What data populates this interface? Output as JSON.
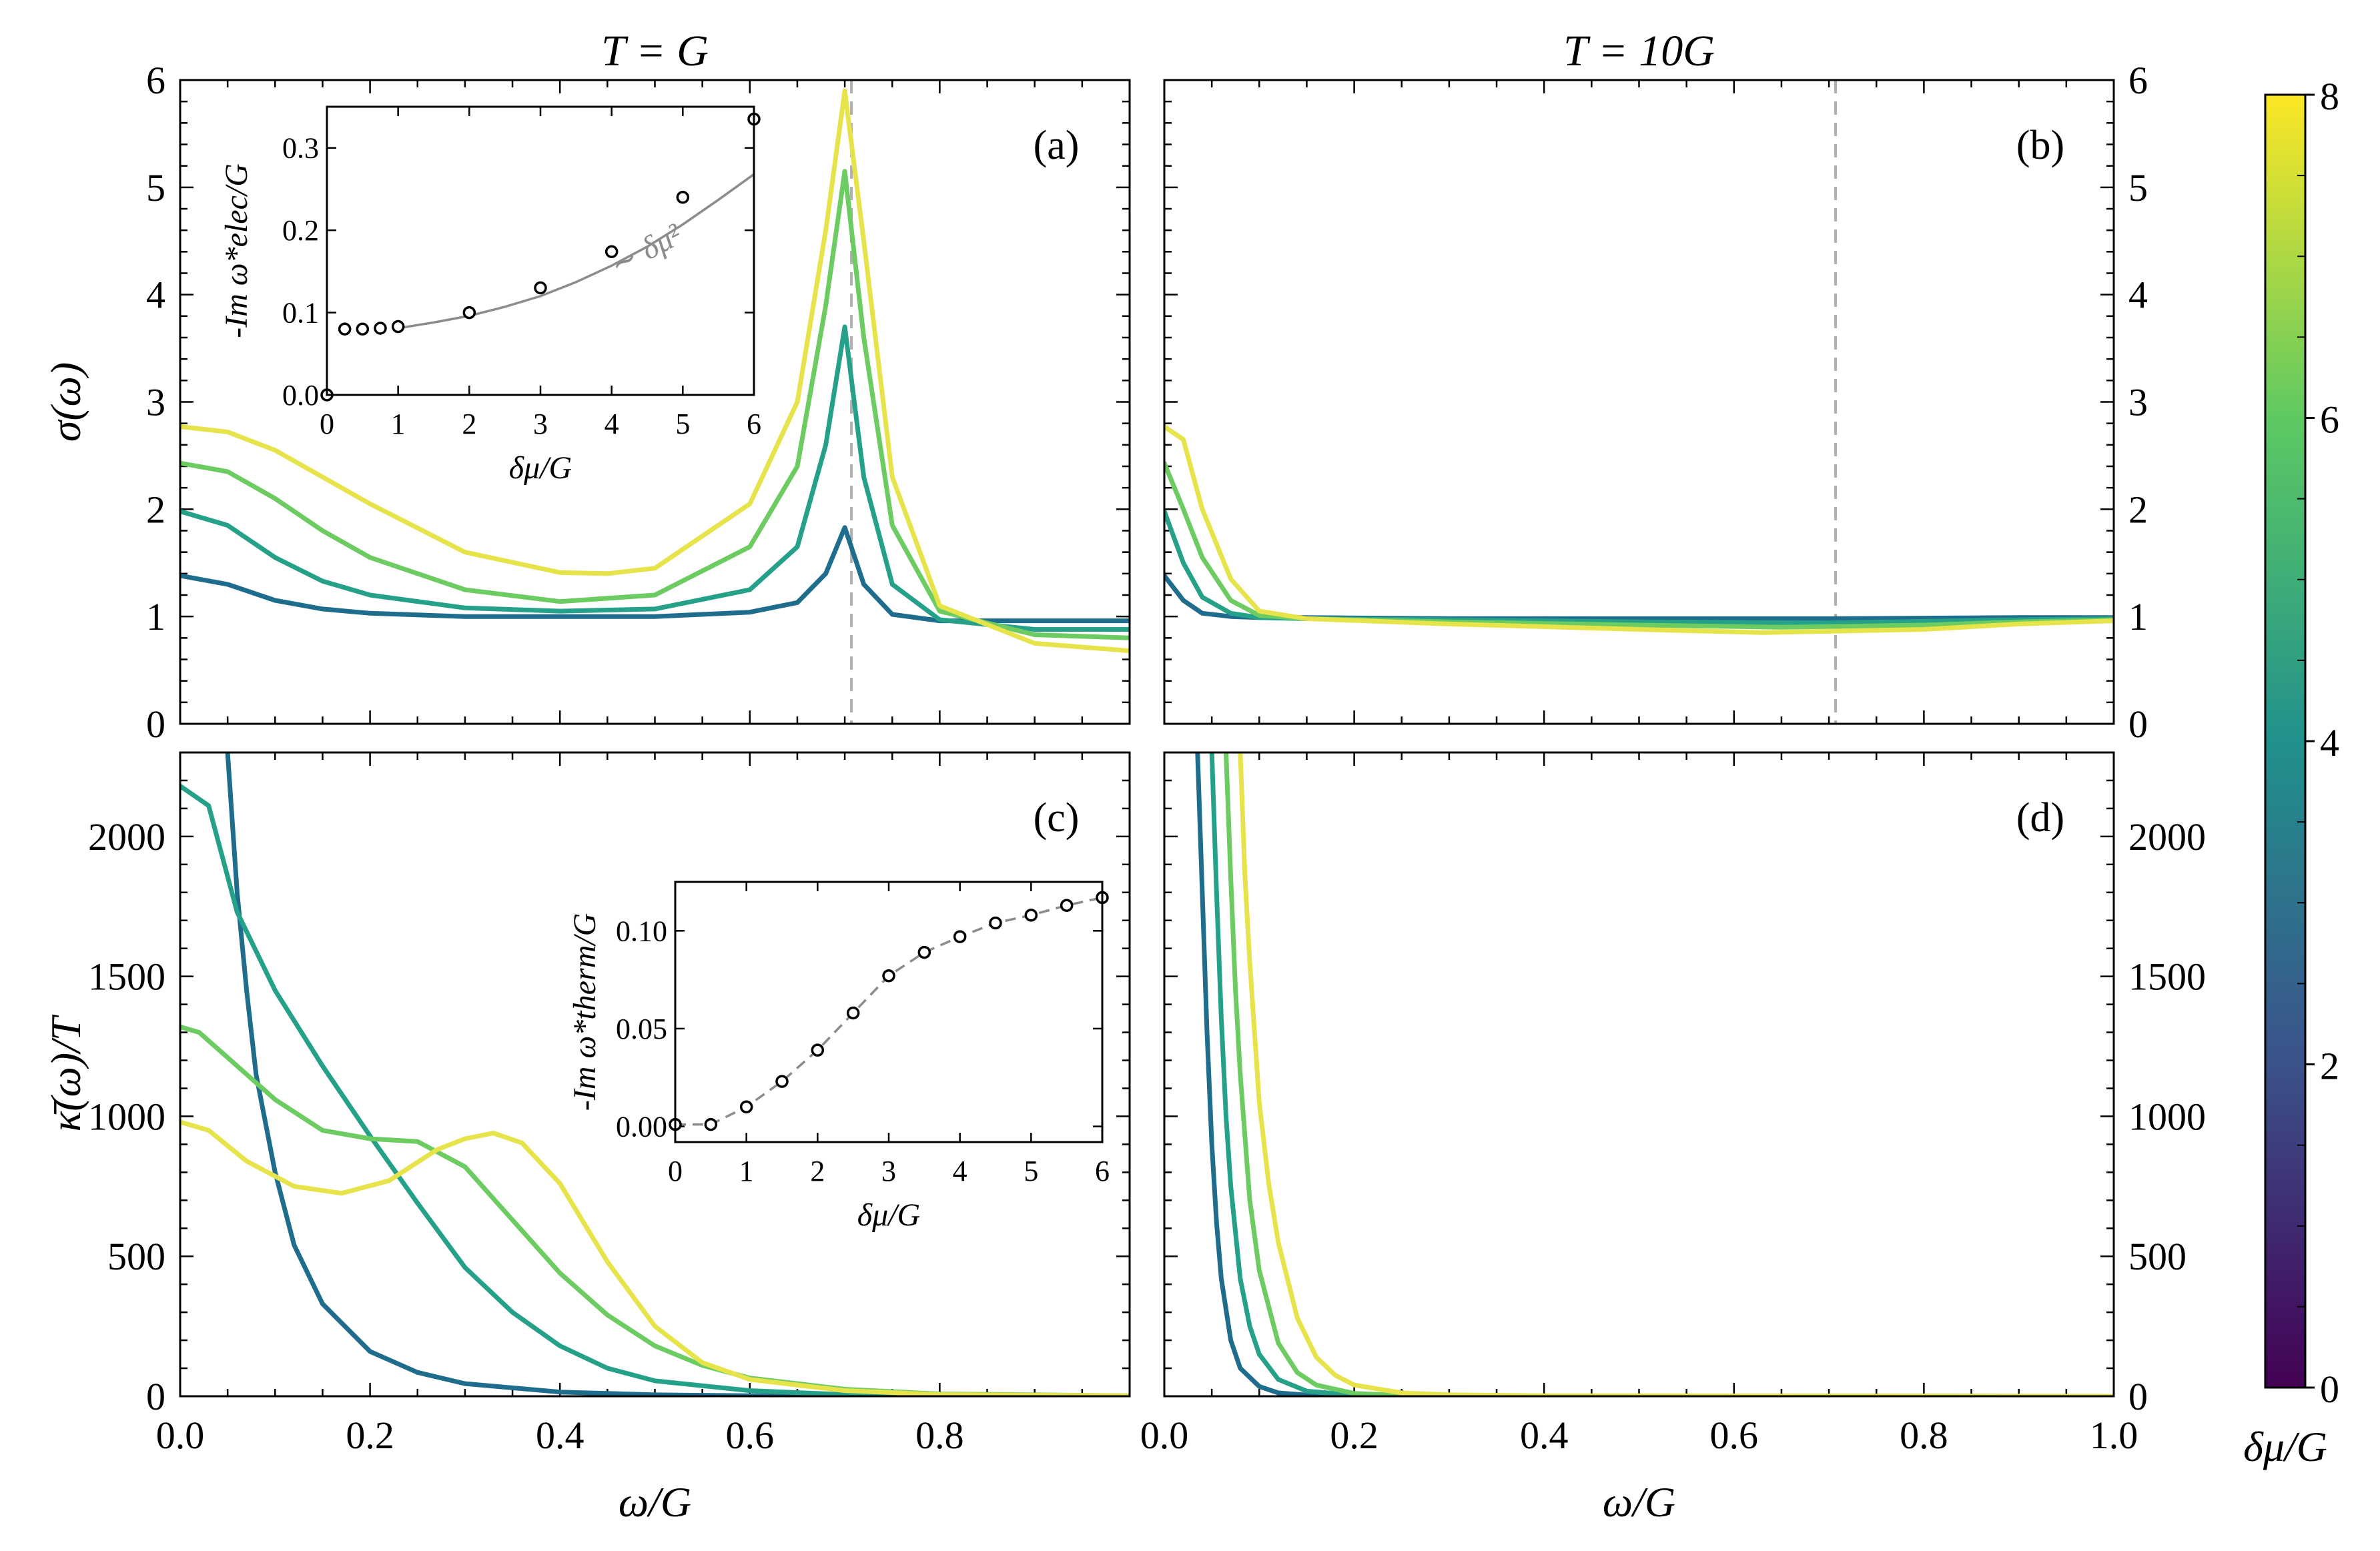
{
  "colors": {
    "dmu2": "#1f6d8c",
    "dmu4": "#25a18a",
    "dmu6": "#6ccb61",
    "dmu8": "#e6e34b",
    "dashed": "#b0b0b0",
    "fit": "#8c8c8c"
  },
  "chart_data": [
    {
      "id": "a",
      "type": "line",
      "panel_label": "(a)",
      "title": "T = G",
      "xlabel": "",
      "ylabel": "σ(ω)",
      "xlim": [
        0,
        1.0
      ],
      "ylim": [
        0,
        6
      ],
      "xticks": [
        0.0,
        0.2,
        0.4,
        0.6,
        0.8
      ],
      "yticks": [
        0,
        1,
        2,
        3,
        4,
        5,
        6
      ],
      "ytick_labels": [
        "0",
        "1",
        "2",
        "3",
        "4",
        "5",
        "6"
      ],
      "vline": 0.707,
      "series": [
        {
          "name": "δμ/G = 2",
          "x": [
            0,
            0.05,
            0.1,
            0.15,
            0.2,
            0.3,
            0.4,
            0.5,
            0.6,
            0.65,
            0.68,
            0.7,
            0.72,
            0.75,
            0.8,
            0.9,
            1.0
          ],
          "values": [
            1.38,
            1.3,
            1.15,
            1.07,
            1.03,
            1.0,
            1.0,
            1.0,
            1.04,
            1.13,
            1.4,
            1.83,
            1.3,
            1.02,
            0.96,
            0.96,
            0.96
          ]
        },
        {
          "name": "δμ/G = 4",
          "x": [
            0,
            0.05,
            0.1,
            0.15,
            0.2,
            0.3,
            0.4,
            0.5,
            0.6,
            0.65,
            0.68,
            0.7,
            0.72,
            0.75,
            0.8,
            0.9,
            1.0
          ],
          "values": [
            1.98,
            1.85,
            1.55,
            1.33,
            1.2,
            1.08,
            1.05,
            1.07,
            1.25,
            1.65,
            2.6,
            3.7,
            2.3,
            1.3,
            0.97,
            0.88,
            0.88
          ]
        },
        {
          "name": "δμ/G = 6",
          "x": [
            0,
            0.05,
            0.1,
            0.15,
            0.2,
            0.3,
            0.4,
            0.5,
            0.6,
            0.65,
            0.68,
            0.7,
            0.72,
            0.75,
            0.8,
            0.9,
            1.0
          ],
          "values": [
            2.43,
            2.35,
            2.1,
            1.8,
            1.55,
            1.25,
            1.14,
            1.2,
            1.65,
            2.4,
            3.9,
            5.15,
            3.6,
            1.85,
            1.05,
            0.83,
            0.8
          ]
        },
        {
          "name": "δμ/G = 8",
          "x": [
            0,
            0.05,
            0.1,
            0.15,
            0.2,
            0.3,
            0.4,
            0.45,
            0.5,
            0.6,
            0.65,
            0.68,
            0.7,
            0.72,
            0.75,
            0.8,
            0.9,
            1.0
          ],
          "values": [
            2.77,
            2.72,
            2.55,
            2.3,
            2.05,
            1.6,
            1.41,
            1.4,
            1.45,
            2.05,
            3.0,
            4.6,
            5.9,
            4.5,
            2.3,
            1.1,
            0.75,
            0.68
          ]
        }
      ],
      "inset": {
        "type": "scatter",
        "xlabel": "δμ/G",
        "ylabel": "-Im ω*elec/G",
        "annotation": "∼ δμ²",
        "xlim": [
          0,
          6
        ],
        "ylim": [
          0,
          0.35
        ],
        "xticks": [
          0,
          1,
          2,
          3,
          4,
          5,
          6
        ],
        "yticks": [
          0.0,
          0.1,
          0.2,
          0.3
        ],
        "ytick_labels": [
          "0.0",
          "0.1",
          "0.2",
          "0.3"
        ],
        "points": {
          "x": [
            0,
            0.25,
            0.5,
            0.75,
            1,
            2,
            3,
            4,
            5,
            6
          ],
          "y": [
            0.0,
            0.08,
            0.08,
            0.081,
            0.083,
            0.1,
            0.13,
            0.174,
            0.24,
            0.335
          ]
        },
        "fit": {
          "x": [
            1,
            1.5,
            2,
            2.5,
            3,
            3.5,
            4,
            4.5,
            5,
            5.5,
            6
          ],
          "y": [
            0.081,
            0.088,
            0.096,
            0.107,
            0.12,
            0.137,
            0.157,
            0.18,
            0.207,
            0.237,
            0.268
          ]
        }
      }
    },
    {
      "id": "b",
      "type": "line",
      "panel_label": "(b)",
      "title": "T = 10G",
      "xlabel": "",
      "ylabel": "",
      "xlim": [
        0,
        1.0
      ],
      "ylim": [
        0,
        6
      ],
      "yticks": [
        0,
        1,
        2,
        3,
        4,
        5,
        6
      ],
      "ytick_labels": [
        "0",
        "1",
        "2",
        "3",
        "4",
        "5",
        "6"
      ],
      "vline": 0.707,
      "series": [
        {
          "name": "δμ/G = 2",
          "x": [
            0,
            0.02,
            0.04,
            0.07,
            0.1,
            0.15,
            0.3,
            0.5,
            0.7,
            0.9,
            1.0
          ],
          "values": [
            1.38,
            1.15,
            1.03,
            1.0,
            0.99,
            0.99,
            0.98,
            0.98,
            0.98,
            0.99,
            0.99
          ]
        },
        {
          "name": "δμ/G = 4",
          "x": [
            0,
            0.02,
            0.04,
            0.07,
            0.1,
            0.15,
            0.3,
            0.5,
            0.7,
            0.9,
            1.0
          ],
          "values": [
            1.98,
            1.5,
            1.18,
            1.03,
            0.99,
            0.98,
            0.97,
            0.95,
            0.94,
            0.97,
            0.98
          ]
        },
        {
          "name": "δμ/G = 6",
          "x": [
            0,
            0.02,
            0.04,
            0.07,
            0.1,
            0.15,
            0.3,
            0.5,
            0.65,
            0.8,
            0.9,
            1.0
          ],
          "values": [
            2.43,
            2.0,
            1.55,
            1.15,
            1.01,
            0.98,
            0.95,
            0.92,
            0.9,
            0.92,
            0.95,
            0.97
          ]
        },
        {
          "name": "δμ/G = 8",
          "x": [
            0,
            0.02,
            0.04,
            0.07,
            0.1,
            0.15,
            0.3,
            0.5,
            0.63,
            0.8,
            0.9,
            1.0
          ],
          "values": [
            2.77,
            2.65,
            2.0,
            1.35,
            1.05,
            0.98,
            0.93,
            0.88,
            0.85,
            0.88,
            0.93,
            0.96
          ]
        }
      ]
    },
    {
      "id": "c",
      "type": "line",
      "panel_label": "(c)",
      "title": "",
      "xlabel": "ω/G",
      "ylabel": "κ̄(ω)/T",
      "xlim": [
        0,
        1.0
      ],
      "ylim": [
        0,
        2300
      ],
      "xticks": [
        0.0,
        0.2,
        0.4,
        0.6,
        0.8
      ],
      "xtick_labels": [
        "0.0",
        "0.2",
        "0.4",
        "0.6",
        "0.8"
      ],
      "yticks": [
        0,
        500,
        1000,
        1500,
        2000
      ],
      "ytick_labels": [
        "0",
        "500",
        "1000",
        "1500",
        "2000"
      ],
      "series": [
        {
          "name": "δμ/G = 2",
          "x": [
            0.05,
            0.06,
            0.07,
            0.08,
            0.1,
            0.12,
            0.15,
            0.2,
            0.25,
            0.3,
            0.4,
            0.5,
            0.6,
            0.8,
            1.0
          ],
          "values": [
            2300,
            1800,
            1450,
            1150,
            800,
            540,
            330,
            160,
            85,
            45,
            15,
            5,
            2,
            0,
            0
          ]
        },
        {
          "name": "δμ/G = 4",
          "x": [
            0,
            0.03,
            0.06,
            0.1,
            0.15,
            0.2,
            0.25,
            0.3,
            0.35,
            0.4,
            0.45,
            0.5,
            0.6,
            0.7,
            0.8,
            1.0
          ],
          "values": [
            2180,
            2110,
            1730,
            1450,
            1180,
            930,
            690,
            460,
            300,
            180,
            100,
            55,
            20,
            6,
            2,
            0
          ]
        },
        {
          "name": "δμ/G = 6",
          "x": [
            0,
            0.02,
            0.05,
            0.1,
            0.15,
            0.2,
            0.25,
            0.3,
            0.35,
            0.4,
            0.45,
            0.5,
            0.55,
            0.6,
            0.7,
            0.8,
            1.0
          ],
          "values": [
            1320,
            1300,
            1210,
            1060,
            950,
            920,
            910,
            820,
            630,
            440,
            290,
            180,
            110,
            65,
            25,
            8,
            2
          ]
        },
        {
          "name": "δμ/G = 8",
          "x": [
            0,
            0.03,
            0.07,
            0.12,
            0.17,
            0.22,
            0.27,
            0.3,
            0.33,
            0.36,
            0.4,
            0.45,
            0.5,
            0.55,
            0.6,
            0.7,
            0.8,
            1.0
          ],
          "values": [
            980,
            950,
            840,
            750,
            725,
            770,
            880,
            920,
            940,
            905,
            760,
            480,
            250,
            120,
            60,
            20,
            6,
            2
          ]
        }
      ],
      "inset": {
        "type": "scatter",
        "xlabel": "δμ/G",
        "ylabel": "-Im ω*therm/G",
        "xlim": [
          0,
          6
        ],
        "ylim": [
          -0.008,
          0.125
        ],
        "xticks": [
          0,
          1,
          2,
          3,
          4,
          5,
          6
        ],
        "yticks": [
          0.0,
          0.05,
          0.1
        ],
        "ytick_labels": [
          "0.00",
          "0.05",
          "0.10"
        ],
        "points": {
          "x": [
            0,
            0.5,
            1,
            1.5,
            2,
            2.5,
            3,
            3.5,
            4,
            4.5,
            5,
            5.5,
            6
          ],
          "y": [
            0.001,
            0.001,
            0.01,
            0.023,
            0.039,
            0.058,
            0.077,
            0.089,
            0.097,
            0.104,
            0.108,
            0.113,
            0.117
          ]
        }
      }
    },
    {
      "id": "d",
      "type": "line",
      "panel_label": "(d)",
      "title": "",
      "xlabel": "ω/G",
      "ylabel": "",
      "xlim": [
        0,
        1.0
      ],
      "ylim": [
        0,
        2300
      ],
      "xticks": [
        0.0,
        0.2,
        0.4,
        0.6,
        0.8,
        1.0
      ],
      "xtick_labels": [
        "0.0",
        "0.2",
        "0.4",
        "0.6",
        "0.8",
        "1.0"
      ],
      "yticks": [
        0,
        500,
        1000,
        1500,
        2000
      ],
      "ytick_labels": [
        "0",
        "500",
        "1000",
        "1500",
        "2000"
      ],
      "series": [
        {
          "name": "δμ/G = 2",
          "x": [
            0.035,
            0.04,
            0.045,
            0.05,
            0.055,
            0.06,
            0.07,
            0.08,
            0.1,
            0.12,
            0.15,
            0.2,
            1.0
          ],
          "values": [
            2300,
            1800,
            1300,
            900,
            620,
            420,
            200,
            100,
            35,
            12,
            4,
            1,
            0
          ]
        },
        {
          "name": "δμ/G = 4",
          "x": [
            0.05,
            0.055,
            0.06,
            0.065,
            0.07,
            0.08,
            0.09,
            0.1,
            0.12,
            0.15,
            0.2,
            0.25,
            1.0
          ],
          "values": [
            2300,
            1800,
            1350,
            1000,
            750,
            420,
            250,
            150,
            60,
            18,
            4,
            1,
            0
          ]
        },
        {
          "name": "δμ/G = 6",
          "x": [
            0.065,
            0.07,
            0.075,
            0.08,
            0.09,
            0.1,
            0.12,
            0.14,
            0.16,
            0.2,
            0.25,
            0.3,
            1.0
          ],
          "values": [
            2300,
            1850,
            1450,
            1150,
            700,
            450,
            190,
            85,
            40,
            10,
            3,
            1,
            0
          ]
        },
        {
          "name": "δμ/G = 8",
          "x": [
            0.08,
            0.085,
            0.09,
            0.1,
            0.11,
            0.12,
            0.14,
            0.16,
            0.18,
            0.2,
            0.25,
            0.3,
            0.4,
            1.0
          ],
          "values": [
            2300,
            1850,
            1550,
            1050,
            760,
            550,
            280,
            140,
            75,
            40,
            12,
            5,
            2,
            0
          ]
        }
      ]
    }
  ],
  "colorbar": {
    "label": "δμ/G",
    "vmin": 0,
    "vmax": 8,
    "ticks": [
      0,
      2,
      4,
      6,
      8
    ],
    "tick_labels": [
      "0",
      "2",
      "4",
      "6",
      "8"
    ],
    "stops": [
      "#440154",
      "#3b528b",
      "#21918c",
      "#5ec962",
      "#fde725"
    ]
  }
}
